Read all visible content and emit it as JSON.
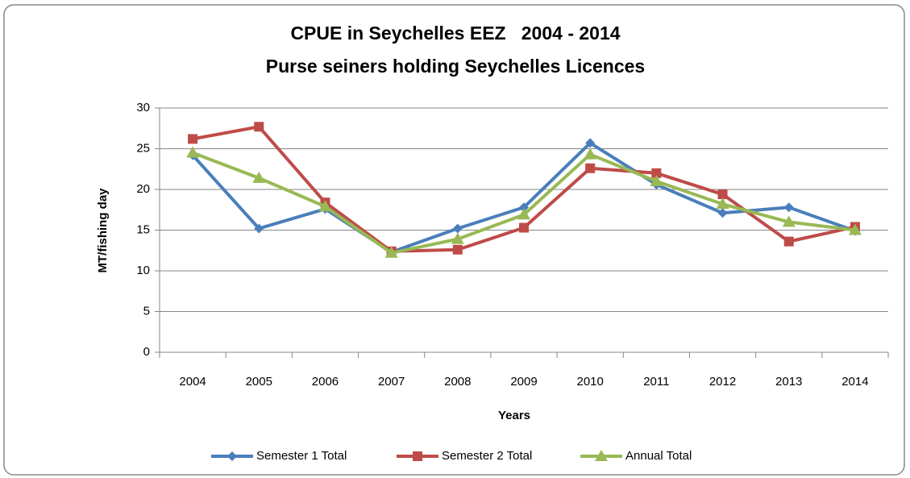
{
  "chart_data": {
    "type": "line",
    "title": "CPUE in Seychelles EEZ   2004 - 2014",
    "subtitle": "Purse seiners holding Seychelles Licences",
    "x_label": "Years",
    "y_label": "MT/fishing day",
    "categories": [
      "2004",
      "2005",
      "2006",
      "2007",
      "2008",
      "2009",
      "2010",
      "2011",
      "2012",
      "2013",
      "2014"
    ],
    "series": [
      {
        "name": "Semester 1 Total",
        "color": "#4a7ebb",
        "marker": "diamond",
        "values": [
          24.2,
          15.2,
          17.6,
          12.3,
          15.2,
          17.8,
          25.7,
          20.6,
          17.1,
          17.8,
          14.9
        ]
      },
      {
        "name": "Semester 2 Total",
        "color": "#be4b48",
        "marker": "square",
        "values": [
          26.2,
          27.7,
          18.4,
          12.4,
          12.6,
          15.3,
          22.6,
          22.0,
          19.4,
          13.6,
          15.4
        ]
      },
      {
        "name": "Annual Total",
        "color": "#98b954",
        "marker": "triangle",
        "values": [
          24.5,
          21.4,
          17.9,
          12.2,
          13.9,
          16.9,
          24.3,
          21.0,
          18.2,
          16.0,
          15.0
        ]
      }
    ],
    "ylim": [
      0,
      30
    ],
    "yticks": [
      0,
      5,
      10,
      15,
      20,
      25,
      30
    ],
    "grid": true,
    "legend": "bottom"
  }
}
